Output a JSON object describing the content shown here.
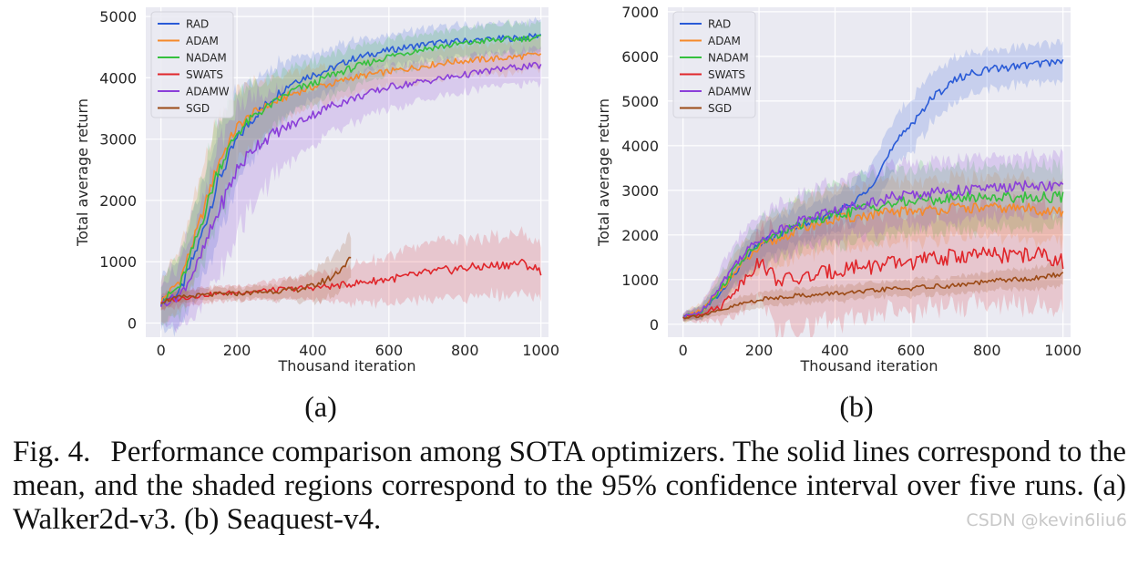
{
  "figure": {
    "caption_label": "Fig. 4.",
    "caption_text": "Performance comparison among SOTA optimizers. The solid lines correspond to the mean, and the shaded regions correspond to the 95% confidence interval over five runs. (a) Walker2d-v3. (b) Seaquest-v4.",
    "watermark": "CSDN @kevin6liu6"
  },
  "colors": {
    "RAD": "#2a5bd7",
    "ADAM": "#f58a2b",
    "NADAM": "#35c03e",
    "SWATS": "#e0262b",
    "ADAMW": "#8b3fd9",
    "SGD": "#9b4a16",
    "plot_bg": "#eaeaf2",
    "grid": "#ffffff"
  },
  "chart_data": [
    {
      "type": "line",
      "panel_label": "(a)",
      "env": "Walker2d-v3",
      "xlabel": "Thousand iteration",
      "ylabel": "Total average return",
      "xlim": [
        -40,
        1020
      ],
      "ylim": [
        -230,
        5150
      ],
      "xticks": [
        0,
        200,
        400,
        600,
        800,
        1000
      ],
      "yticks": [
        0,
        1000,
        2000,
        3000,
        4000,
        5000
      ],
      "legend_position": "top-left",
      "series": [
        {
          "name": "RAD",
          "x": [
            0,
            50,
            100,
            150,
            200,
            250,
            300,
            350,
            400,
            450,
            500,
            550,
            600,
            650,
            700,
            750,
            800,
            850,
            900,
            950,
            1000
          ],
          "values": [
            350,
            500,
            1300,
            2300,
            3000,
            3400,
            3700,
            3950,
            4050,
            4150,
            4300,
            4380,
            4450,
            4500,
            4550,
            4580,
            4600,
            4620,
            4640,
            4650,
            4700
          ],
          "ci": [
            500,
            700,
            900,
            1100,
            900,
            700,
            600,
            500,
            450,
            400,
            350,
            300,
            300,
            300,
            300,
            300,
            300,
            300,
            300,
            300,
            300
          ]
        },
        {
          "name": "ADAM",
          "x": [
            0,
            50,
            100,
            150,
            200,
            250,
            300,
            350,
            400,
            450,
            500,
            550,
            600,
            650,
            700,
            750,
            800,
            850,
            900,
            950,
            1000
          ],
          "values": [
            350,
            700,
            1600,
            2600,
            3200,
            3450,
            3600,
            3750,
            3850,
            3900,
            4000,
            4050,
            4100,
            4150,
            4200,
            4250,
            4280,
            4300,
            4320,
            4350,
            4380
          ],
          "ci": [
            400,
            600,
            800,
            900,
            700,
            550,
            450,
            400,
            380,
            350,
            320,
            300,
            300,
            300,
            300,
            300,
            300,
            300,
            300,
            300,
            300
          ]
        },
        {
          "name": "NADAM",
          "x": [
            0,
            50,
            100,
            150,
            200,
            250,
            300,
            350,
            400,
            450,
            500,
            550,
            600,
            650,
            700,
            750,
            800,
            850,
            900,
            950,
            1000
          ],
          "values": [
            350,
            600,
            1500,
            2500,
            3100,
            3400,
            3600,
            3800,
            3900,
            4050,
            4150,
            4250,
            4350,
            4420,
            4480,
            4520,
            4560,
            4600,
            4620,
            4640,
            4660
          ],
          "ci": [
            400,
            600,
            850,
            1000,
            800,
            600,
            500,
            450,
            420,
            400,
            380,
            350,
            330,
            320,
            300,
            300,
            300,
            300,
            300,
            300,
            300
          ]
        },
        {
          "name": "SWATS",
          "x": [
            0,
            50,
            100,
            150,
            200,
            250,
            300,
            350,
            400,
            450,
            500,
            550,
            600,
            650,
            700,
            750,
            800,
            850,
            900,
            950,
            1000
          ],
          "values": [
            350,
            400,
            450,
            480,
            500,
            520,
            540,
            560,
            580,
            600,
            640,
            680,
            720,
            760,
            820,
            860,
            900,
            920,
            950,
            980,
            850
          ],
          "ci": [
            150,
            150,
            150,
            150,
            150,
            150,
            200,
            200,
            250,
            300,
            350,
            400,
            450,
            500,
            550,
            550,
            550,
            550,
            550,
            550,
            550
          ]
        },
        {
          "name": "ADAMW",
          "x": [
            0,
            50,
            100,
            150,
            200,
            250,
            300,
            350,
            400,
            450,
            500,
            550,
            600,
            650,
            700,
            750,
            800,
            850,
            900,
            950,
            1000
          ],
          "values": [
            300,
            450,
            1000,
            1800,
            2500,
            2900,
            3100,
            3250,
            3400,
            3550,
            3650,
            3750,
            3850,
            3900,
            3950,
            4000,
            4050,
            4100,
            4150,
            4180,
            4200
          ],
          "ci": [
            400,
            600,
            900,
            1300,
            1200,
            1000,
            800,
            650,
            550,
            500,
            450,
            420,
            400,
            380,
            350,
            350,
            330,
            320,
            320,
            320,
            320
          ]
        },
        {
          "name": "SGD",
          "x": [
            0,
            50,
            100,
            150,
            200,
            250,
            300,
            350,
            400,
            450,
            500
          ],
          "values": [
            350,
            420,
            450,
            470,
            480,
            500,
            520,
            540,
            600,
            750,
            1050
          ],
          "ci": [
            120,
            120,
            120,
            120,
            120,
            120,
            150,
            200,
            300,
            400,
            450
          ]
        }
      ]
    },
    {
      "type": "line",
      "panel_label": "(b)",
      "env": "Seaquest-v4",
      "xlabel": "Thousand iteration",
      "ylabel": "Total average return",
      "xlim": [
        -40,
        1020
      ],
      "ylim": [
        -290,
        7100
      ],
      "xticks": [
        0,
        200,
        400,
        600,
        800,
        1000
      ],
      "yticks": [
        0,
        1000,
        2000,
        3000,
        4000,
        5000,
        6000,
        7000
      ],
      "legend_position": "top-left",
      "series": [
        {
          "name": "RAD",
          "x": [
            0,
            50,
            100,
            150,
            200,
            250,
            300,
            350,
            400,
            450,
            500,
            550,
            600,
            650,
            700,
            750,
            800,
            850,
            900,
            950,
            1000
          ],
          "values": [
            150,
            300,
            700,
            1300,
            1800,
            2000,
            2200,
            2300,
            2500,
            2700,
            3200,
            3900,
            4500,
            5000,
            5400,
            5600,
            5700,
            5750,
            5800,
            5850,
            5900
          ],
          "ci": [
            100,
            150,
            300,
            400,
            400,
            450,
            450,
            450,
            500,
            550,
            600,
            650,
            700,
            650,
            600,
            550,
            500,
            500,
            500,
            500,
            500
          ]
        },
        {
          "name": "ADAM",
          "x": [
            0,
            50,
            100,
            150,
            200,
            250,
            300,
            350,
            400,
            450,
            500,
            550,
            600,
            650,
            700,
            750,
            800,
            850,
            900,
            950,
            1000
          ],
          "values": [
            150,
            300,
            800,
            1300,
            1700,
            1900,
            2100,
            2250,
            2350,
            2400,
            2450,
            2500,
            2550,
            2550,
            2600,
            2600,
            2600,
            2600,
            2600,
            2550,
            2500
          ],
          "ci": [
            100,
            200,
            400,
            500,
            600,
            650,
            700,
            750,
            800,
            800,
            800,
            800,
            800,
            800,
            800,
            800,
            800,
            800,
            800,
            800,
            800
          ]
        },
        {
          "name": "NADAM",
          "x": [
            0,
            50,
            100,
            150,
            200,
            250,
            300,
            350,
            400,
            450,
            500,
            550,
            600,
            650,
            700,
            750,
            800,
            850,
            900,
            950,
            1000
          ],
          "values": [
            150,
            300,
            800,
            1400,
            1800,
            2000,
            2200,
            2350,
            2450,
            2550,
            2650,
            2700,
            2750,
            2800,
            2800,
            2850,
            2850,
            2850,
            2850,
            2850,
            2850
          ],
          "ci": [
            100,
            200,
            400,
            500,
            600,
            650,
            700,
            750,
            800,
            850,
            850,
            850,
            850,
            850,
            850,
            850,
            850,
            850,
            850,
            850,
            850
          ]
        },
        {
          "name": "SWATS",
          "x": [
            0,
            50,
            100,
            150,
            200,
            250,
            300,
            350,
            400,
            450,
            500,
            550,
            600,
            650,
            700,
            750,
            800,
            850,
            900,
            950,
            1000
          ],
          "values": [
            150,
            250,
            400,
            900,
            1400,
            1000,
            1000,
            1100,
            1200,
            1300,
            1300,
            1350,
            1400,
            1450,
            1500,
            1550,
            1550,
            1550,
            1550,
            1550,
            1400
          ],
          "ci": [
            100,
            200,
            400,
            700,
            900,
            1300,
            1300,
            1300,
            1300,
            1300,
            1300,
            1300,
            1300,
            1300,
            1300,
            1300,
            1300,
            1300,
            1300,
            1300,
            1300
          ]
        },
        {
          "name": "ADAMW",
          "x": [
            0,
            50,
            100,
            150,
            200,
            250,
            300,
            350,
            400,
            450,
            500,
            550,
            600,
            650,
            700,
            750,
            800,
            850,
            900,
            950,
            1000
          ],
          "values": [
            150,
            300,
            900,
            1500,
            1900,
            2100,
            2300,
            2450,
            2550,
            2650,
            2750,
            2850,
            2900,
            2950,
            3000,
            3000,
            3050,
            3050,
            3100,
            3100,
            3100
          ],
          "ci": [
            100,
            200,
            500,
            600,
            650,
            700,
            700,
            750,
            750,
            800,
            800,
            800,
            800,
            800,
            800,
            800,
            800,
            800,
            800,
            800,
            800
          ]
        },
        {
          "name": "SGD",
          "x": [
            0,
            50,
            100,
            150,
            200,
            250,
            300,
            350,
            400,
            450,
            500,
            550,
            600,
            650,
            700,
            750,
            800,
            850,
            900,
            950,
            1000
          ],
          "values": [
            150,
            200,
            300,
            450,
            550,
            600,
            650,
            650,
            700,
            700,
            750,
            800,
            800,
            850,
            850,
            900,
            950,
            1000,
            1000,
            1050,
            1150
          ],
          "ci": [
            80,
            100,
            150,
            200,
            200,
            200,
            200,
            200,
            200,
            200,
            200,
            200,
            220,
            220,
            220,
            240,
            240,
            260,
            260,
            280,
            300
          ]
        }
      ]
    }
  ]
}
